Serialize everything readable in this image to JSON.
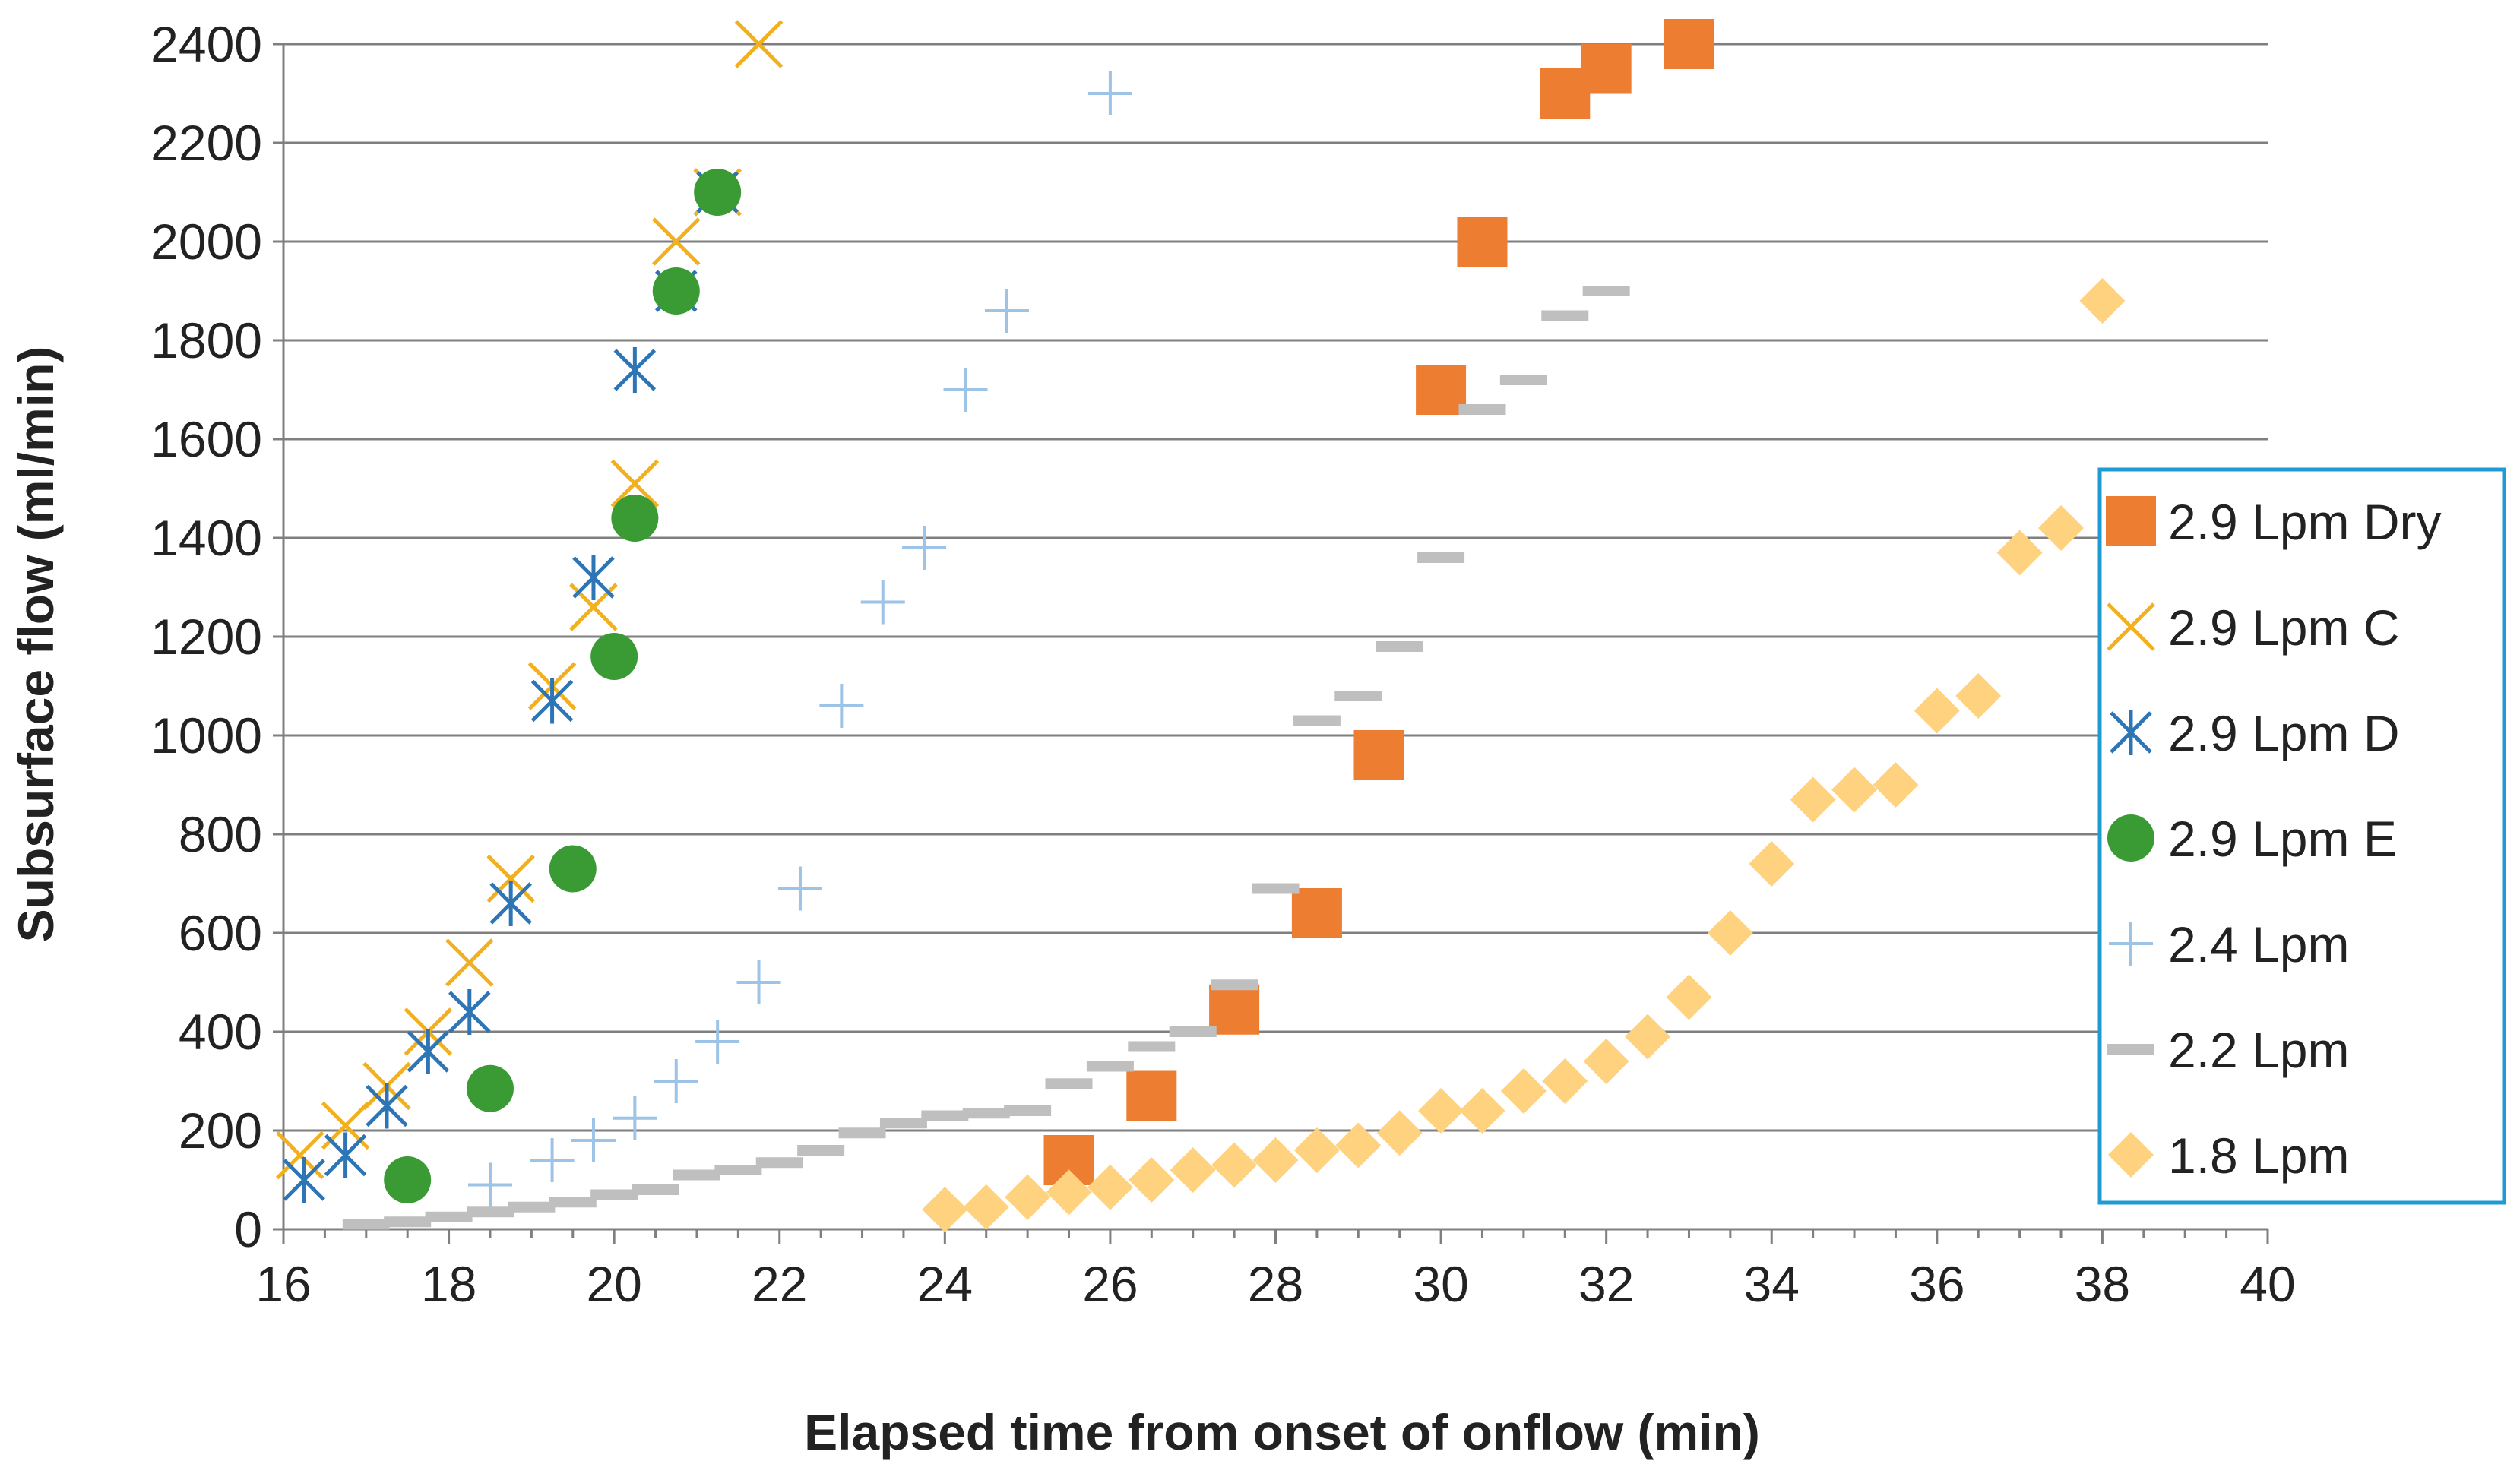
{
  "chart_data": {
    "type": "scatter",
    "title": "",
    "xlabel": "Elapsed time from onset of onflow (min)",
    "ylabel": "Subsurface flow (ml/min)",
    "xlim": [
      16,
      40
    ],
    "ylim": [
      0,
      2400
    ],
    "xticks": [
      "16",
      "18",
      "20",
      "22",
      "24",
      "26",
      "28",
      "30",
      "32",
      "34",
      "36",
      "38",
      "40"
    ],
    "yticks": [
      "0",
      "200",
      "400",
      "600",
      "800",
      "1000",
      "1200",
      "1400",
      "1600",
      "1800",
      "2000",
      "2200",
      "2400"
    ],
    "grid": "horizontal",
    "legend_position": "right",
    "series": [
      {
        "name": "2.9 Lpm Dry",
        "marker": "square",
        "color": "#ED7D31",
        "points": [
          [
            25.5,
            140
          ],
          [
            26.5,
            270
          ],
          [
            27.5,
            445
          ],
          [
            28.5,
            640
          ],
          [
            29.25,
            960
          ],
          [
            30,
            1700
          ],
          [
            30.5,
            2000
          ],
          [
            31.5,
            2300
          ],
          [
            32,
            2350
          ],
          [
            33,
            2400
          ]
        ]
      },
      {
        "name": "2.9 Lpm  C",
        "marker": "x",
        "color": "#F2B01E",
        "points": [
          [
            16.2,
            150
          ],
          [
            16.75,
            210
          ],
          [
            17.25,
            290
          ],
          [
            17.75,
            400
          ],
          [
            18.25,
            540
          ],
          [
            18.75,
            710
          ],
          [
            19.25,
            1100
          ],
          [
            19.75,
            1260
          ],
          [
            20.25,
            1510
          ],
          [
            20.75,
            2000
          ],
          [
            21.25,
            2100
          ],
          [
            21.75,
            2400
          ]
        ]
      },
      {
        "name": "2.9 Lpm  D",
        "marker": "asterisk",
        "color": "#2E75B6",
        "points": [
          [
            16.25,
            100
          ],
          [
            16.75,
            150
          ],
          [
            17.25,
            250
          ],
          [
            17.75,
            360
          ],
          [
            18.25,
            440
          ],
          [
            18.75,
            660
          ],
          [
            19.25,
            1070
          ],
          [
            19.75,
            1320
          ],
          [
            20.25,
            1740
          ],
          [
            20.75,
            1900
          ],
          [
            21.25,
            2100
          ]
        ]
      },
      {
        "name": "2.9 Lpm  E",
        "marker": "circle",
        "color": "#3A9B35",
        "points": [
          [
            17.5,
            100
          ],
          [
            18.5,
            285
          ],
          [
            19.5,
            730
          ],
          [
            20,
            1160
          ],
          [
            20.25,
            1440
          ],
          [
            20.75,
            1900
          ],
          [
            21.25,
            2100
          ]
        ]
      },
      {
        "name": "2.4 Lpm",
        "marker": "plus",
        "color": "#9DC3E6",
        "points": [
          [
            18.5,
            90
          ],
          [
            19.25,
            140
          ],
          [
            19.75,
            180
          ],
          [
            20.25,
            225
          ],
          [
            20.75,
            300
          ],
          [
            21.25,
            380
          ],
          [
            21.75,
            500
          ],
          [
            22.25,
            690
          ],
          [
            22.75,
            1060
          ],
          [
            23.25,
            1270
          ],
          [
            23.75,
            1380
          ],
          [
            24.25,
            1700
          ],
          [
            24.75,
            1860
          ],
          [
            26,
            2300
          ]
        ]
      },
      {
        "name": "2.2 Lpm",
        "marker": "dash",
        "color": "#BFBFBF",
        "points": [
          [
            17,
            10
          ],
          [
            17.5,
            15
          ],
          [
            18,
            25
          ],
          [
            18.5,
            35
          ],
          [
            19,
            45
          ],
          [
            19.5,
            55
          ],
          [
            20,
            70
          ],
          [
            20.5,
            80
          ],
          [
            21,
            110
          ],
          [
            21.5,
            120
          ],
          [
            22,
            135
          ],
          [
            22.5,
            160
          ],
          [
            23,
            195
          ],
          [
            23.5,
            215
          ],
          [
            24,
            230
          ],
          [
            24.5,
            235
          ],
          [
            25,
            240
          ],
          [
            25.5,
            295
          ],
          [
            26,
            330
          ],
          [
            26.5,
            370
          ],
          [
            27,
            400
          ],
          [
            27.5,
            495
          ],
          [
            28,
            690
          ],
          [
            28.5,
            1030
          ],
          [
            29,
            1080
          ],
          [
            29.5,
            1180
          ],
          [
            30,
            1360
          ],
          [
            30.5,
            1660
          ],
          [
            31,
            1720
          ],
          [
            31.5,
            1850
          ],
          [
            32,
            1900
          ]
        ]
      },
      {
        "name": "1.8 Lpm",
        "marker": "diamond",
        "color": "#FFD27F",
        "points": [
          [
            24,
            40
          ],
          [
            24.5,
            45
          ],
          [
            25,
            65
          ],
          [
            25.5,
            75
          ],
          [
            26,
            85
          ],
          [
            26.5,
            100
          ],
          [
            27,
            120
          ],
          [
            27.5,
            130
          ],
          [
            28,
            140
          ],
          [
            28.5,
            160
          ],
          [
            29,
            170
          ],
          [
            29.5,
            195
          ],
          [
            30,
            240
          ],
          [
            30.5,
            240
          ],
          [
            31,
            280
          ],
          [
            31.5,
            300
          ],
          [
            32,
            340
          ],
          [
            32.5,
            390
          ],
          [
            33,
            470
          ],
          [
            33.5,
            600
          ],
          [
            34,
            740
          ],
          [
            34.5,
            870
          ],
          [
            35,
            890
          ],
          [
            35.5,
            900
          ],
          [
            36,
            1050
          ],
          [
            36.5,
            1080
          ],
          [
            37,
            1370
          ],
          [
            37.5,
            1420
          ],
          [
            38,
            1880
          ]
        ]
      }
    ]
  }
}
